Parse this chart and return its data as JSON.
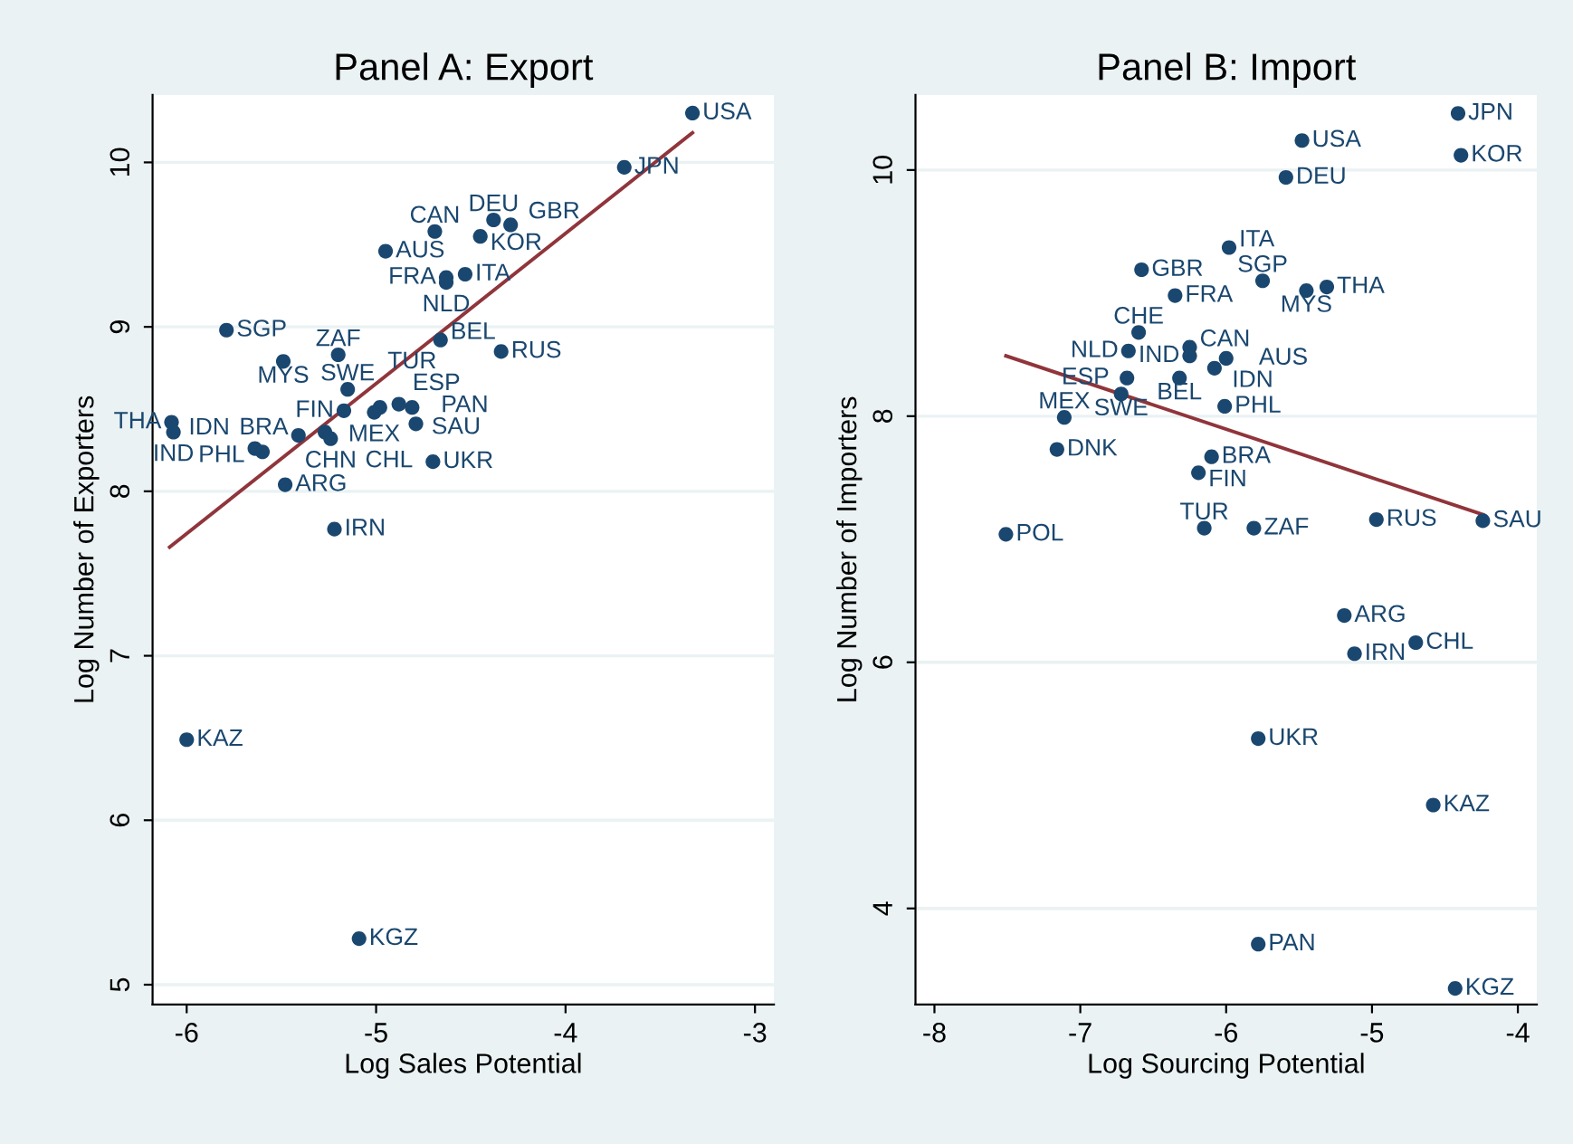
{
  "chart_data": [
    {
      "type": "scatter",
      "title": "Panel A: Export",
      "xlabel": "Log Sales Potential",
      "ylabel": "Log Number of Exporters",
      "xlim": [
        -6.18,
        -2.9
      ],
      "ylim": [
        4.88,
        10.41
      ],
      "xticks": [
        -6,
        -5,
        -4,
        -3
      ],
      "yticks": [
        5,
        6,
        7,
        8,
        9,
        10
      ],
      "grid": "y",
      "legend": false,
      "series": [
        {
          "type": "scatter",
          "marker": "circle",
          "color": "#1a476f",
          "x": [
            -3.33,
            -3.69,
            -4.38,
            -4.29,
            -4.69,
            -4.45,
            -4.95,
            -4.53,
            -4.63,
            -4.63,
            -5.79,
            -4.66,
            -4.34,
            -5.49,
            -5.2,
            -5.15,
            -6.08,
            -6.07,
            -5.64,
            -5.6,
            -5.48,
            -4.7,
            -5.22,
            -6.0,
            -5.09,
            -4.79,
            -4.88,
            -5.17,
            -5.01,
            -4.98,
            -4.81,
            -5.27,
            -5.24,
            -5.41
          ],
          "values": [
            10.3,
            9.97,
            9.65,
            9.62,
            9.58,
            9.55,
            9.46,
            9.32,
            9.3,
            9.27,
            8.98,
            8.92,
            8.85,
            8.79,
            8.83,
            8.62,
            8.42,
            8.36,
            8.26,
            8.24,
            8.04,
            8.18,
            7.77,
            6.49,
            5.28,
            8.41,
            8.53,
            8.49,
            8.48,
            8.51,
            8.51,
            8.36,
            8.32,
            8.34
          ],
          "value_labels": [
            "USA",
            "JPN",
            "DEU",
            "GBR",
            "CAN",
            "KOR",
            "AUS",
            "ITA",
            "FRA",
            "NLD",
            "SGP",
            "BEL",
            "RUS",
            "MYS",
            "ZAF",
            "SWE",
            "THA",
            "IND",
            "PHL",
            "IDN",
            "ARG",
            "UKR",
            "IRN",
            "KAZ",
            "KGZ",
            "PAN",
            "SAU",
            "FIN",
            "MEX",
            "ESP",
            "TUR",
            "CHL",
            "CHN",
            "BRA"
          ]
        },
        {
          "type": "line",
          "color": "#90353b",
          "x": [
            -6.09,
            -3.33
          ],
          "values": [
            7.66,
            10.18
          ]
        }
      ]
    },
    {
      "type": "scatter",
      "title": "Panel B: Import",
      "xlabel": "Log Sourcing Potential",
      "ylabel": "Log Number of Importers",
      "xlim": [
        -8.13,
        -3.87
      ],
      "ylim": [
        3.22,
        10.61
      ],
      "xticks": [
        -8,
        -7,
        -6,
        -5,
        -4
      ],
      "yticks": [
        4,
        6,
        8,
        10
      ],
      "grid": "y",
      "legend": false,
      "series": [
        {
          "type": "scatter",
          "marker": "circle",
          "color": "#1a476f",
          "x": [
            -4.41,
            -5.48,
            -4.39,
            -5.59,
            -5.98,
            -6.58,
            -5.75,
            -5.45,
            -5.31,
            -6.35,
            -6.6,
            -6.67,
            -6.25,
            -6.25,
            -6.08,
            -6.0,
            -6.68,
            -6.32,
            -6.72,
            -6.01,
            -7.11,
            -7.16,
            -6.1,
            -6.19,
            -6.15,
            -5.81,
            -7.51,
            -4.97,
            -4.24,
            -5.19,
            -4.7,
            -5.12,
            -5.78,
            -4.58,
            -5.78,
            -4.43
          ],
          "values": [
            10.46,
            10.24,
            10.12,
            9.94,
            9.37,
            9.19,
            9.1,
            9.02,
            9.05,
            8.98,
            8.68,
            8.53,
            8.56,
            8.49,
            8.39,
            8.47,
            8.31,
            8.31,
            8.18,
            8.08,
            7.99,
            7.73,
            7.67,
            7.54,
            7.09,
            7.09,
            7.04,
            7.16,
            7.15,
            6.38,
            6.16,
            6.07,
            5.38,
            4.84,
            3.71,
            3.35
          ],
          "value_labels": [
            "JPN",
            "USA",
            "KOR",
            "DEU",
            "ITA",
            "GBR",
            "SGP",
            "MYS",
            "THA",
            "FRA",
            "CHE",
            "NLD",
            "CAN",
            "IND",
            "IDN",
            "AUS",
            "ESP",
            "BEL",
            "SWE",
            "PHL",
            "MEX",
            "DNK",
            "BRA",
            "FIN",
            "TUR",
            "ZAF",
            "POL",
            "RUS",
            "SAU",
            "ARG",
            "CHL",
            "IRN",
            "UKR",
            "KAZ",
            "PAN",
            "KGZ"
          ]
        },
        {
          "type": "line",
          "color": "#90353b",
          "x": [
            -7.51,
            -4.24
          ],
          "values": [
            8.49,
            7.2
          ]
        }
      ]
    }
  ]
}
